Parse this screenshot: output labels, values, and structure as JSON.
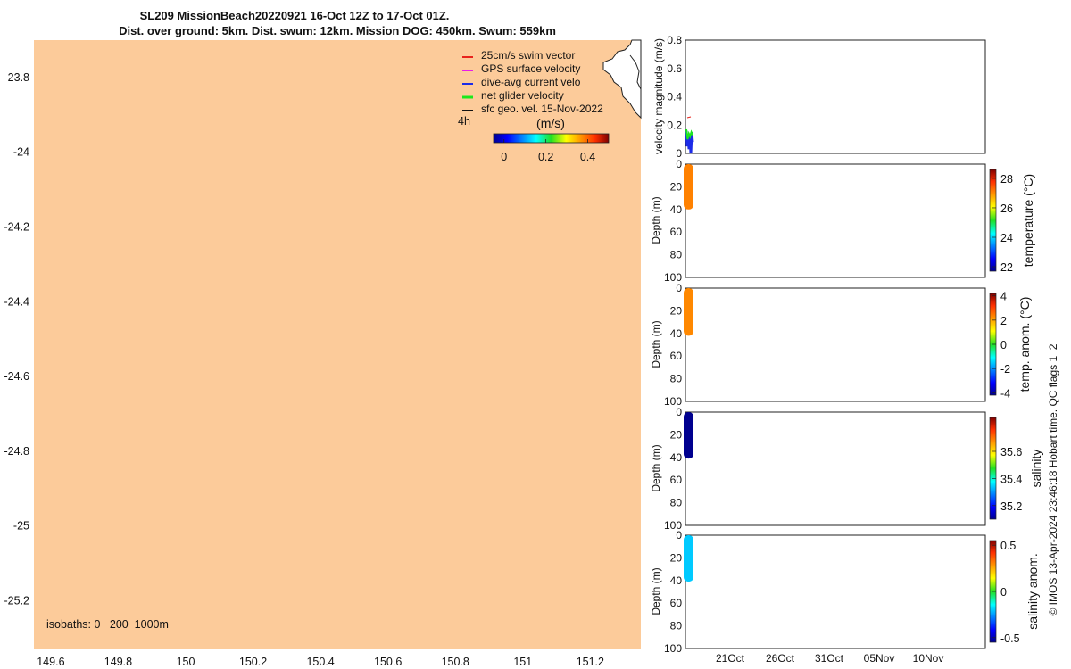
{
  "title": {
    "line1": "SL209 MissionBeach20220921 16-Oct 12Z to 17-Oct 01Z.",
    "line2": "Dist. over ground: 5km. Dist. swum: 12km. Mission DOG: 450km. Swum: 559km"
  },
  "map": {
    "background_color": "#FCCB9A",
    "land_color": "#FFFFFF",
    "xlim": [
      149.55,
      151.35
    ],
    "ylim": [
      -25.33,
      -23.7
    ],
    "xticks": [
      "149.6",
      "149.8",
      "150",
      "150.2",
      "150.4",
      "150.6",
      "150.8",
      "151",
      "151.2"
    ],
    "yticks": [
      "-23.8",
      "-24",
      "-24.2",
      "-24.4",
      "-24.6",
      "-24.8",
      "-25",
      "-25.2"
    ],
    "isobaths_label": "isobaths: 0   200  1000m",
    "legend": [
      {
        "label": "25cm/s swim vector",
        "color": "#E8231C"
      },
      {
        "label": "GPS surface velocity",
        "color": "#E81CE8"
      },
      {
        "label": "dive-avg current velo",
        "color": "#1C2BE8"
      },
      {
        "label": "net glider velocity",
        "color": "#1CE81C"
      },
      {
        "label": "sfc geo. vel. 15-Nov-2022",
        "color": "#111111"
      }
    ],
    "time_label": "4h",
    "colorbar": {
      "label": "(m/s)",
      "ticks": [
        "0",
        "0.2",
        "0.4"
      ],
      "range": [
        -0.05,
        0.5
      ]
    }
  },
  "chart_data": [
    {
      "type": "line",
      "name": "velocity-magnitude",
      "ylabel": "velocity magnitude (m/s)",
      "ylim": [
        0,
        0.8
      ],
      "yticks": [
        "0",
        "0.2",
        "0.4",
        "0.6",
        "0.8"
      ],
      "series": [
        {
          "name": "dive-avg current",
          "color": "#1C2BE8",
          "values": [
            0.16,
            0.05,
            0.12,
            0.03,
            0.14,
            0.0,
            0.15,
            0.08
          ]
        },
        {
          "name": "net glider velocity",
          "color": "#1CE81C",
          "values": [
            0.17,
            0.1,
            0.14,
            0.12,
            0.15,
            0.13
          ]
        }
      ]
    },
    {
      "type": "scatter",
      "name": "temperature",
      "ylabel": "Depth (m)",
      "ylim": [
        100,
        0
      ],
      "yticks": [
        "0",
        "20",
        "40",
        "60",
        "80",
        "100"
      ],
      "colorbar_label": "temperature (°C)",
      "colorbar_ticks": [
        "22",
        "24",
        "26",
        "28"
      ],
      "colorbar_range": [
        21.7,
        28.6
      ],
      "profile_depth_max": 40,
      "profile_value": 27.1
    },
    {
      "type": "scatter",
      "name": "temp-anomaly",
      "ylabel": "Depth (m)",
      "ylim": [
        100,
        0
      ],
      "yticks": [
        "0",
        "20",
        "40",
        "60",
        "80",
        "100"
      ],
      "colorbar_label": "temp. anom. (°C)",
      "colorbar_ticks": [
        "4",
        "2",
        "0",
        "-2",
        "-4"
      ],
      "colorbar_range": [
        -4.2,
        4.2
      ],
      "profile_depth_max": 42,
      "profile_value": 2.3
    },
    {
      "type": "scatter",
      "name": "salinity",
      "ylabel": "Depth (m)",
      "ylim": [
        100,
        0
      ],
      "yticks": [
        "0",
        "20",
        "40",
        "60",
        "80",
        "100"
      ],
      "colorbar_label": "salinity",
      "colorbar_ticks": [
        "35.6",
        "35.4",
        "35.2"
      ],
      "colorbar_range": [
        35.1,
        35.85
      ],
      "profile_depth_max": 41,
      "profile_value": 35.1
    },
    {
      "type": "scatter",
      "name": "salinity-anomaly",
      "ylabel": "Depth (m)",
      "ylim": [
        100,
        0
      ],
      "yticks": [
        "0",
        "20",
        "40",
        "60",
        "80",
        "100"
      ],
      "colorbar_label": "salinity anom.",
      "colorbar_ticks": [
        "0.5",
        "0",
        "-0.5"
      ],
      "colorbar_range": [
        -0.55,
        0.55
      ],
      "profile_depth_max": 41,
      "profile_value": -0.2,
      "xticks": [
        "21Oct",
        "26Oct",
        "31Oct",
        "05Nov",
        "10Nov"
      ]
    }
  ],
  "footer": "© IMOS 13-Apr-2024 23:46:18 Hobart time. QC flags 1  2"
}
